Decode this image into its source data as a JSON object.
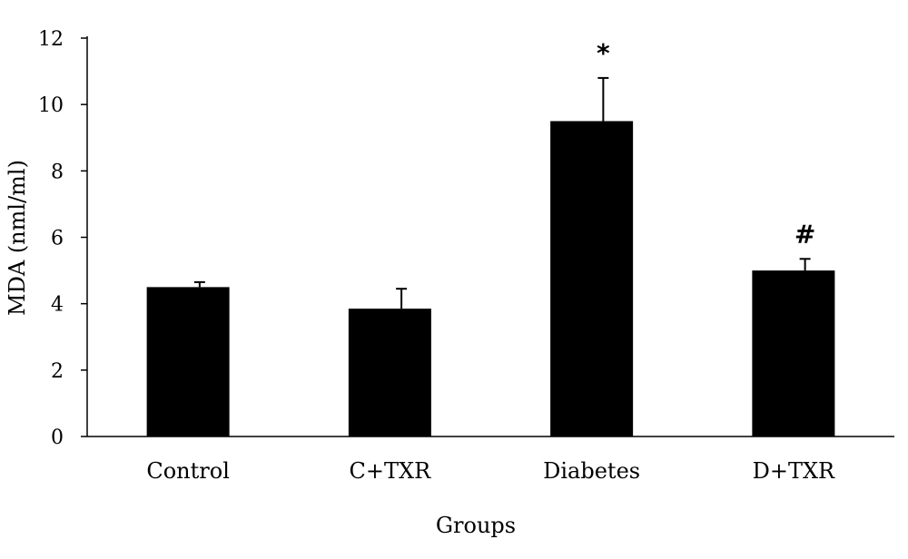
{
  "chart_data": {
    "type": "bar",
    "title": "",
    "xlabel": "Groups",
    "ylabel": "MDA (nml/ml)",
    "categories": [
      "Control",
      "C+TXR",
      "Diabetes",
      "D+TXR"
    ],
    "values": [
      4.5,
      3.85,
      9.5,
      5.0
    ],
    "error_plus": [
      0.15,
      0.6,
      1.3,
      0.35
    ],
    "annotations": [
      "",
      "",
      "*",
      "#"
    ],
    "ylim": [
      0,
      12
    ],
    "yticks": [
      0,
      2,
      4,
      6,
      8,
      10,
      12
    ],
    "grid": false,
    "bar_color": "#000000"
  }
}
